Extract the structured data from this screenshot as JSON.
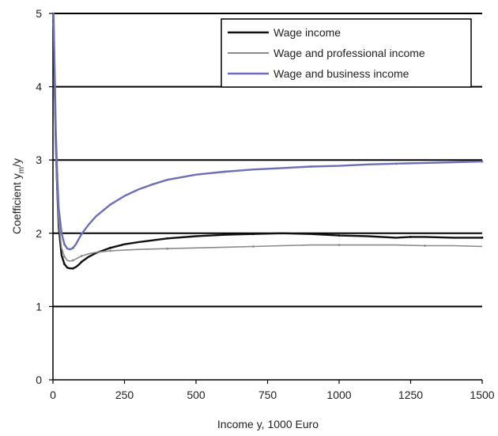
{
  "chart_data": {
    "type": "line",
    "title": "",
    "xlabel": "Income y, 1000 Euro",
    "ylabel": "Coefficient y_m/y",
    "xlim": [
      0,
      1500
    ],
    "ylim": [
      0,
      5
    ],
    "x_ticks": [
      "0",
      "250",
      "500",
      "750",
      "1000",
      "1250",
      "1500"
    ],
    "y_ticks": [
      "0",
      "1",
      "2",
      "3",
      "4",
      "5"
    ],
    "grid": "horizontal",
    "legend_position": "top-right",
    "series": [
      {
        "name": "Wage income",
        "color": "#111111",
        "x": [
          2,
          6,
          10,
          15,
          20,
          30,
          40,
          50,
          60,
          70,
          80,
          90,
          100,
          125,
          150,
          200,
          250,
          300,
          400,
          500,
          600,
          700,
          800,
          900,
          1000,
          1100,
          1200,
          1250,
          1300,
          1400,
          1500
        ],
        "y": [
          4.9,
          4.0,
          3.2,
          2.6,
          2.1,
          1.7,
          1.58,
          1.53,
          1.52,
          1.52,
          1.54,
          1.57,
          1.61,
          1.68,
          1.73,
          1.8,
          1.85,
          1.88,
          1.93,
          1.96,
          1.98,
          1.99,
          2.0,
          1.99,
          1.97,
          1.96,
          1.94,
          1.95,
          1.95,
          1.94,
          1.94
        ]
      },
      {
        "name": "Wage and professional income",
        "color": "#8a8a8a",
        "x": [
          2,
          6,
          10,
          15,
          20,
          30,
          40,
          50,
          60,
          70,
          80,
          90,
          100,
          125,
          150,
          200,
          250,
          300,
          400,
          500,
          600,
          700,
          800,
          900,
          1000,
          1100,
          1200,
          1300,
          1400,
          1500
        ],
        "y": [
          4.85,
          3.9,
          3.1,
          2.55,
          2.15,
          1.8,
          1.68,
          1.63,
          1.62,
          1.63,
          1.65,
          1.67,
          1.69,
          1.72,
          1.74,
          1.76,
          1.77,
          1.78,
          1.79,
          1.8,
          1.81,
          1.82,
          1.83,
          1.84,
          1.84,
          1.84,
          1.84,
          1.83,
          1.83,
          1.82
        ]
      },
      {
        "name": "Wage and business income",
        "color": "#6b6fb5",
        "x": [
          2,
          6,
          10,
          15,
          20,
          30,
          40,
          50,
          60,
          70,
          80,
          90,
          100,
          125,
          150,
          200,
          250,
          300,
          350,
          400,
          500,
          600,
          700,
          800,
          900,
          1000,
          1100,
          1200,
          1300,
          1400,
          1500
        ],
        "y": [
          5.0,
          4.2,
          3.4,
          2.8,
          2.35,
          2.0,
          1.85,
          1.79,
          1.78,
          1.8,
          1.85,
          1.92,
          1.99,
          2.12,
          2.23,
          2.39,
          2.51,
          2.6,
          2.67,
          2.73,
          2.8,
          2.84,
          2.87,
          2.89,
          2.91,
          2.92,
          2.94,
          2.95,
          2.96,
          2.97,
          2.98
        ]
      }
    ]
  }
}
